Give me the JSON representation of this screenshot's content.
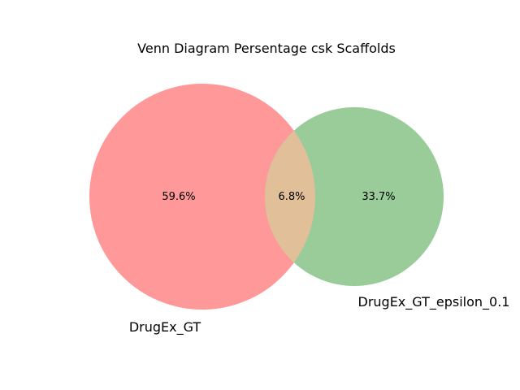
{
  "title": "Venn Diagram Persentage csk Scaffolds",
  "chart_data": {
    "type": "venn",
    "title": "Venn Diagram Persentage csk Scaffolds",
    "sets": [
      {
        "name": "DrugEx_GT",
        "color": "#ff9999"
      },
      {
        "name": "DrugEx_GT_epsilon_0.1",
        "color": "#99cc99"
      }
    ],
    "regions": {
      "only_a": "59.6%",
      "intersection": "6.8%",
      "only_b": "33.7%"
    },
    "intersection_color": "#e0bf99"
  }
}
